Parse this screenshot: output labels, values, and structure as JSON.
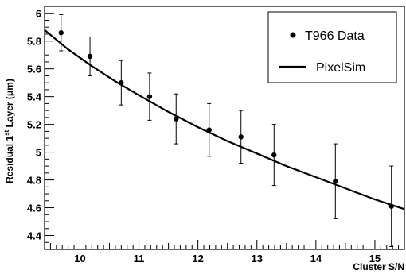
{
  "chart_data": {
    "type": "scatter",
    "xlabel": "Cluster S/N",
    "ylabel": {
      "prefix": "Residual 1",
      "sup": "st",
      "suffix": " Layer (",
      "unit": "μm",
      "close": ")"
    },
    "xlim": [
      9.4,
      15.5
    ],
    "ylim": [
      4.3,
      6.05
    ],
    "x_ticks": [
      10,
      11,
      12,
      13,
      14,
      15
    ],
    "y_ticks": [
      4.4,
      4.6,
      4.8,
      5,
      5.2,
      5.4,
      5.6,
      5.8,
      6
    ],
    "x_tick_labels": [
      "10",
      "11",
      "12",
      "13",
      "14",
      "15"
    ],
    "y_tick_labels": [
      "4.4",
      "4.6",
      "4.8",
      "5",
      "5.2",
      "5.4",
      "5.6",
      "5.8",
      "6"
    ],
    "series": [
      {
        "name": "T966 Data",
        "kind": "points",
        "x": [
          9.68,
          10.17,
          10.7,
          11.18,
          11.63,
          12.19,
          12.73,
          13.29,
          14.33,
          15.28
        ],
        "y": [
          5.86,
          5.69,
          5.5,
          5.4,
          5.24,
          5.16,
          5.11,
          4.98,
          4.79,
          4.61
        ],
        "yerr": [
          0.13,
          0.14,
          0.16,
          0.17,
          0.18,
          0.19,
          0.19,
          0.22,
          0.27,
          0.29
        ]
      },
      {
        "name": "PixelSim",
        "kind": "line",
        "x": [
          9.4,
          9.8,
          10.2,
          10.6,
          11.0,
          11.5,
          12.0,
          12.5,
          13.0,
          13.5,
          14.0,
          14.5,
          15.0,
          15.5
        ],
        "y": [
          5.88,
          5.74,
          5.62,
          5.51,
          5.41,
          5.29,
          5.18,
          5.08,
          4.99,
          4.9,
          4.82,
          4.74,
          4.66,
          4.59
        ]
      }
    ],
    "legend": {
      "position": "top-right"
    }
  }
}
